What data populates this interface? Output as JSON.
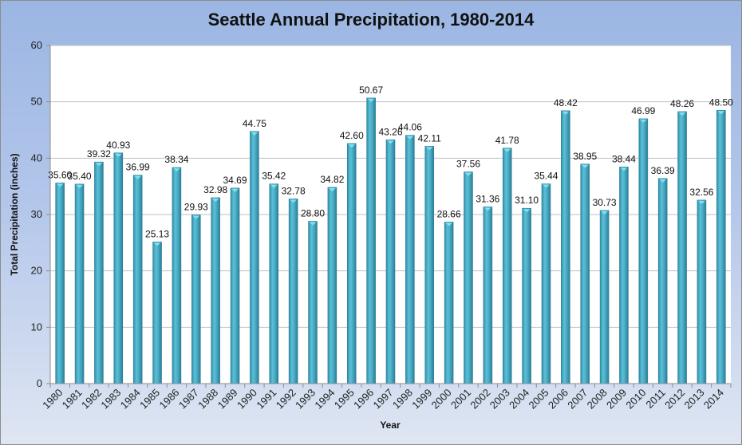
{
  "chart_data": {
    "type": "bar",
    "title": "Seattle Annual Precipitation, 1980-2014",
    "xlabel": "Year",
    "ylabel": "Total Precipitation (inches)",
    "ylim": [
      0,
      60
    ],
    "yticks": [
      0,
      10,
      20,
      30,
      40,
      50,
      60
    ],
    "grid": true,
    "legend": "none",
    "categories": [
      "1980",
      "1981",
      "1982",
      "1983",
      "1984",
      "1985",
      "1986",
      "1987",
      "1988",
      "1989",
      "1990",
      "1991",
      "1992",
      "1993",
      "1994",
      "1995",
      "1996",
      "1997",
      "1998",
      "1999",
      "2000",
      "2001",
      "2002",
      "2003",
      "2004",
      "2005",
      "2006",
      "2007",
      "2008",
      "2009",
      "2010",
      "2011",
      "2012",
      "2013",
      "2014"
    ],
    "values": [
      35.6,
      35.4,
      39.32,
      40.93,
      36.99,
      25.13,
      38.34,
      29.93,
      32.98,
      34.69,
      44.75,
      35.42,
      32.78,
      28.8,
      34.82,
      42.6,
      50.67,
      43.26,
      44.06,
      42.11,
      28.66,
      37.56,
      31.36,
      41.78,
      31.1,
      35.44,
      48.42,
      38.95,
      30.73,
      38.44,
      46.99,
      36.39,
      48.26,
      32.56,
      48.5
    ],
    "data_labels": [
      "35.60",
      "35.40",
      "39.32",
      "40.93",
      "36.99",
      "25.13",
      "38.34",
      "29.93",
      "32.98",
      "34.69",
      "44.75",
      "35.42",
      "32.78",
      "28.80",
      "34.82",
      "42.60",
      "50.67",
      "43.26",
      "44.06",
      "42.11",
      "28.66",
      "37.56",
      "31.36",
      "41.78",
      "31.10",
      "35.44",
      "48.42",
      "38.95",
      "30.73",
      "38.44",
      "46.99",
      "36.39",
      "48.26",
      "32.56",
      "48.50"
    ],
    "colors": {
      "bar": "#4bacc6",
      "bar_top": "#7fe0f0",
      "plot_bg": "#ffffff",
      "grid": "#bfbfbf"
    }
  }
}
